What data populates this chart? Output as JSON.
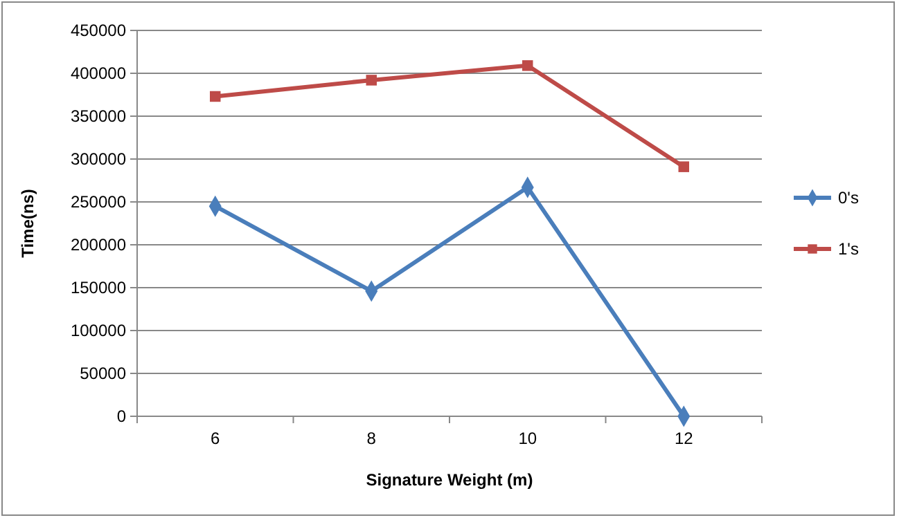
{
  "chart_data": {
    "type": "line",
    "xlabel": "Signature Weight (m)",
    "ylabel": "Time(ns)",
    "categories": [
      "6",
      "8",
      "10",
      "12"
    ],
    "series": [
      {
        "name": "0's",
        "color": "#4a7ebb",
        "values": [
          245000,
          146000,
          267000,
          0
        ]
      },
      {
        "name": "1's",
        "color": "#be4b48",
        "values": [
          373000,
          392000,
          409000,
          291000
        ]
      }
    ],
    "ylim": [
      0,
      450000
    ],
    "yticks": [
      0,
      50000,
      100000,
      150000,
      200000,
      250000,
      300000,
      350000,
      400000,
      450000
    ],
    "grid": "y",
    "legend": "right",
    "marker": [
      "diamond",
      "square"
    ]
  }
}
